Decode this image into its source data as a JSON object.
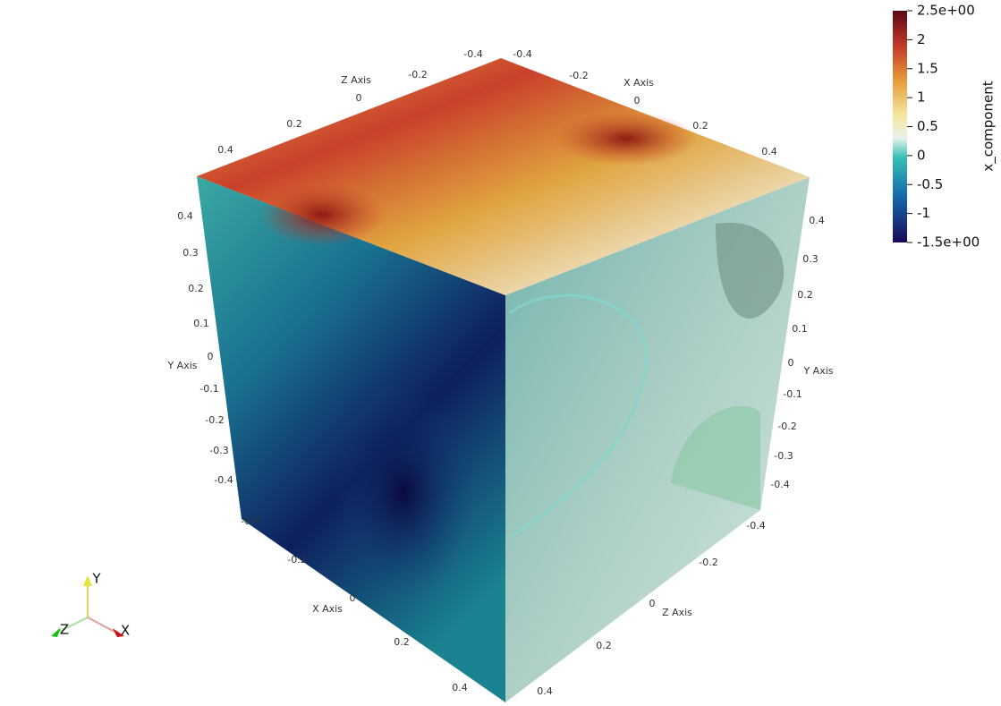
{
  "axes": {
    "z_top": {
      "title": "Z Axis",
      "ticks": [
        0.4,
        0.2,
        0,
        -0.2,
        -0.4
      ]
    },
    "x_top": {
      "title": "X Axis",
      "ticks": [
        -0.4,
        -0.2,
        0,
        0.2,
        0.4
      ]
    },
    "y_left": {
      "title": "Y Axis",
      "ticks": [
        0.4,
        0.3,
        0.2,
        0.1,
        0,
        -0.1,
        -0.2,
        -0.3,
        -0.4
      ]
    },
    "y_right": {
      "title": "Y Axis",
      "ticks": [
        0.4,
        0.3,
        0.2,
        0.1,
        0,
        -0.1,
        -0.2,
        -0.3,
        -0.4
      ]
    },
    "x_bottom": {
      "title": "X Axis",
      "ticks": [
        -0.4,
        -0.2,
        0,
        0.2,
        0.4
      ]
    },
    "z_bottom": {
      "title": "Z Axis",
      "ticks": [
        -0.4,
        -0.2,
        0,
        0.2,
        0.4
      ]
    }
  },
  "colorbar": {
    "title": "x_component",
    "range": [
      -1.5,
      2.5
    ],
    "ticks": [
      {
        "value": 2.5,
        "label": "2.5e+00"
      },
      2,
      1.5,
      1,
      0.5,
      0,
      -0.5,
      -1,
      {
        "value": -1.5,
        "label": "-1.5e+00"
      }
    ]
  },
  "orientation": {
    "x": "X",
    "y": "Y",
    "z": "Z"
  }
}
